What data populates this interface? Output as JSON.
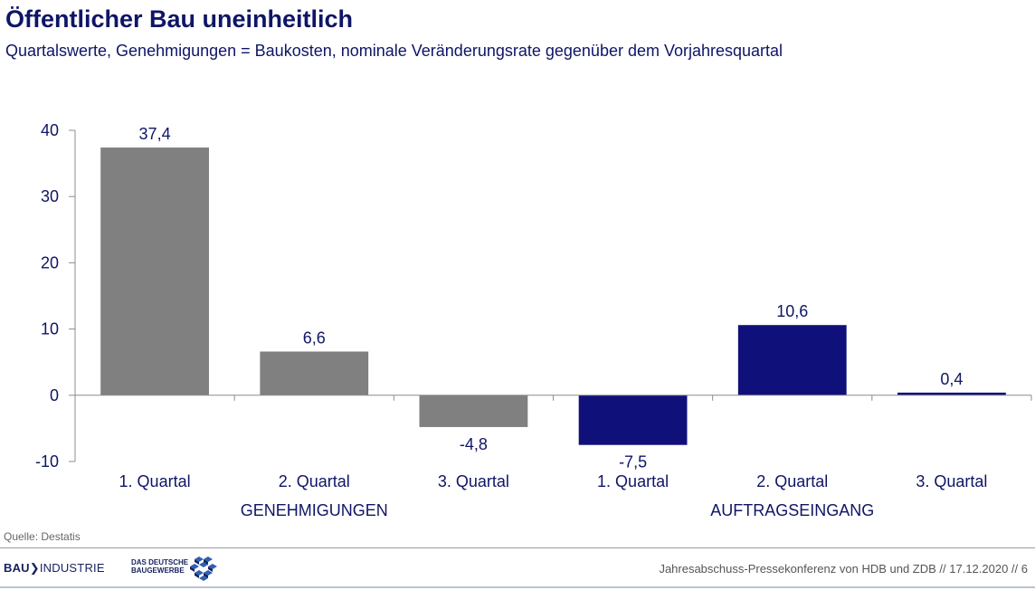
{
  "header": {
    "title": "Öffentlicher Bau uneinheitlich",
    "subtitle": "Quartalswerte, Genehmigungen = Baukosten, nominale Veränderungsrate gegenüber dem Vorjahresquartal"
  },
  "chart_data": {
    "type": "bar",
    "categories": [
      "1. Quartal",
      "2. Quartal",
      "3. Quartal",
      "1. Quartal",
      "2. Quartal",
      "3. Quartal"
    ],
    "groups": [
      {
        "label": "GENEHMIGUNGEN",
        "categories": [
          "1. Quartal",
          "2. Quartal",
          "3. Quartal"
        ]
      },
      {
        "label": "AUFTRAGSEINGANG",
        "categories": [
          "1. Quartal",
          "2. Quartal",
          "3. Quartal"
        ]
      }
    ],
    "values": [
      37.4,
      6.6,
      -4.8,
      -7.5,
      10.6,
      0.4
    ],
    "data_labels": [
      "37,4",
      "6,6",
      "-4,8",
      "-7,5",
      "10,6",
      "0,4"
    ],
    "bar_colors": [
      "#808080",
      "#808080",
      "#808080",
      "#10107a",
      "#10107a",
      "#10107a"
    ],
    "ylim": [
      -10,
      40
    ],
    "yticks": [
      -10,
      0,
      10,
      20,
      30,
      40
    ],
    "grid": false,
    "legend": "none"
  },
  "footer": {
    "source": "Quelle: Destatis",
    "logo_bauindustrie_bold": "BAU",
    "logo_bauindustrie_rest": "INDUSTRIE",
    "logo_baugewerbe_line1": "DAS DEUTSCHE",
    "logo_baugewerbe_line2": "BAUGEWERBE",
    "text": "Jahresabschuss-Pressekonferenz von HDB und ZDB  //  17.12.2020  //    6"
  },
  "colors": {
    "title": "#0f1566",
    "genehmigungen": "#808080",
    "auftragseingang": "#10107a"
  }
}
